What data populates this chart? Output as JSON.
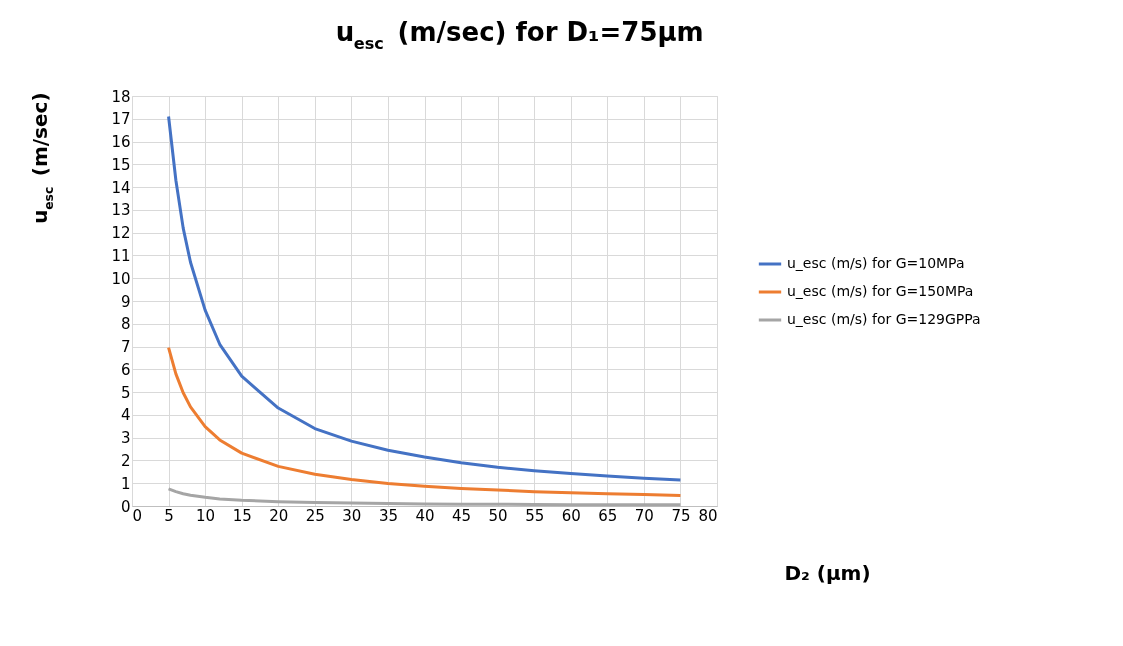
{
  "chart_data": {
    "type": "line",
    "title": "u$_{esc}$ (m/sec) for D₁=75µm",
    "xlabel": "D₂ (µm)",
    "ylabel": "u$_{esc}$ (m/sec)",
    "x": [
      5,
      6,
      7,
      8,
      10,
      12,
      15,
      20,
      25,
      30,
      35,
      40,
      45,
      50,
      55,
      60,
      65,
      70,
      75
    ],
    "series": [
      {
        "name": "u_esc (m/s) for G=10MPa",
        "color": "#4472c4",
        "values": [
          17.1,
          14.3,
          12.2,
          10.7,
          8.6,
          7.1,
          5.7,
          4.3,
          3.4,
          2.85,
          2.45,
          2.15,
          1.9,
          1.7,
          1.55,
          1.43,
          1.32,
          1.22,
          1.14
        ]
      },
      {
        "name": "u_esc (m/s) for G=150MPa",
        "color": "#ed7d31",
        "values": [
          6.95,
          5.8,
          4.97,
          4.35,
          3.48,
          2.9,
          2.32,
          1.74,
          1.39,
          1.16,
          0.99,
          0.87,
          0.77,
          0.7,
          0.63,
          0.58,
          0.54,
          0.5,
          0.46
        ]
      },
      {
        "name": "u_esc (m/s) for G=129GPPa",
        "color": "#a5a5a5",
        "values": [
          0.75,
          0.63,
          0.54,
          0.47,
          0.38,
          0.31,
          0.25,
          0.19,
          0.15,
          0.13,
          0.11,
          0.09,
          0.08,
          0.08,
          0.07,
          0.06,
          0.06,
          0.05,
          0.05
        ]
      }
    ],
    "xlim": [
      0,
      80
    ],
    "xticks": [
      0,
      5,
      10,
      15,
      20,
      25,
      30,
      35,
      40,
      45,
      50,
      55,
      60,
      65,
      70,
      75,
      80
    ],
    "ylim": [
      0,
      18
    ],
    "yticks": [
      0,
      1,
      2,
      3,
      4,
      5,
      6,
      7,
      8,
      9,
      10,
      11,
      12,
      13,
      14,
      15,
      16,
      17,
      18
    ],
    "grid": true,
    "legend": "right",
    "marker": "none",
    "line_style": "solid"
  }
}
